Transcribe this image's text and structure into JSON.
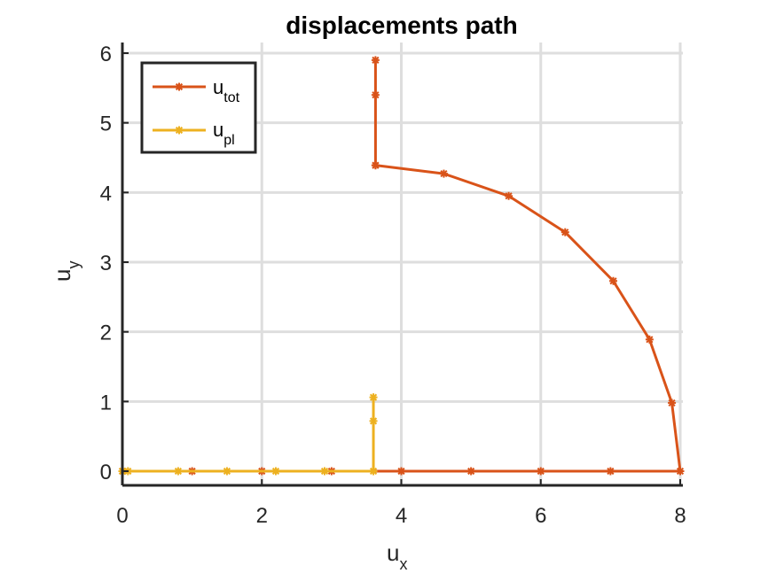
{
  "chart_data": {
    "type": "line",
    "title": "displacements path",
    "xlabel": {
      "main": "u",
      "sub": "x"
    },
    "ylabel": {
      "main": "u",
      "sub": "y"
    },
    "xlim": [
      0,
      8
    ],
    "ylim": [
      0,
      6
    ],
    "xticks": [
      0,
      2,
      4,
      6,
      8
    ],
    "yticks": [
      0,
      1,
      2,
      3,
      4,
      5,
      6
    ],
    "grid": true,
    "legend": {
      "position": "top-left"
    },
    "series": [
      {
        "name": "u_tot",
        "label_main": "u",
        "label_sub": "tot",
        "color": "#D95319",
        "marker": "star",
        "points": [
          [
            0,
            0
          ],
          [
            1,
            0
          ],
          [
            2,
            0
          ],
          [
            3,
            0
          ],
          [
            4,
            0
          ],
          [
            5,
            0
          ],
          [
            6,
            0
          ],
          [
            7,
            0
          ],
          [
            8,
            0
          ],
          [
            7.88,
            0.98
          ],
          [
            7.56,
            1.89
          ],
          [
            7.04,
            2.73
          ],
          [
            6.35,
            3.43
          ],
          [
            5.54,
            3.95
          ],
          [
            4.61,
            4.27
          ],
          [
            3.63,
            4.39
          ],
          [
            3.63,
            4.39
          ],
          [
            3.63,
            5.4
          ],
          [
            3.63,
            5.9
          ]
        ]
      },
      {
        "name": "u_pl",
        "label_main": "u",
        "label_sub": "pl",
        "color": "#EDB120",
        "marker": "star",
        "points": [
          [
            0,
            0
          ],
          [
            0.08,
            0
          ],
          [
            0.8,
            0
          ],
          [
            1.5,
            0
          ],
          [
            2.2,
            0
          ],
          [
            2.9,
            0
          ],
          [
            3.6,
            0
          ],
          [
            3.6,
            0.72
          ],
          [
            3.6,
            1.06
          ]
        ]
      }
    ]
  }
}
